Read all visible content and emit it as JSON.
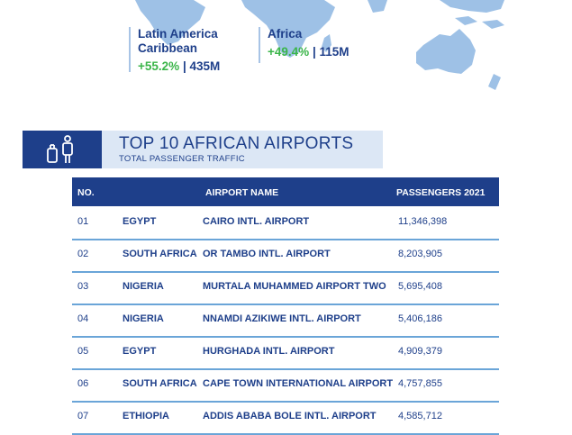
{
  "stats": [
    {
      "region": "Latin America Caribbean",
      "region_line1": "Latin America",
      "region_line2": "Caribbean",
      "change": "+55.2%",
      "sep": "|",
      "passengers": "435M"
    },
    {
      "region": "Africa",
      "region_line1": "Africa",
      "region_line2": "",
      "change": "+49.4%",
      "sep": "|",
      "passengers": "115M"
    }
  ],
  "section": {
    "title": "TOP 10 AFRICAN AIRPORTS",
    "subtitle": "TOTAL PASSENGER TRAFFIC",
    "icon": "luggage-traveler-icon"
  },
  "table": {
    "headers": {
      "no": "NO.",
      "airport": "AIRPORT NAME",
      "passengers": "PASSENGERS 2021"
    },
    "rows": [
      {
        "no": "01",
        "country": "EGYPT",
        "airport": "CAIRO INTL. AIRPORT",
        "passengers": "11,346,398"
      },
      {
        "no": "02",
        "country": "SOUTH AFRICA",
        "airport": "OR TAMBO INTL. AIRPORT",
        "passengers": "8,203,905"
      },
      {
        "no": "03",
        "country": "NIGERIA",
        "airport": "MURTALA MUHAMMED AIRPORT TWO",
        "passengers": "5,695,408"
      },
      {
        "no": "04",
        "country": "NIGERIA",
        "airport": "NNAMDI AZIKIWE INTL. AIRPORT",
        "passengers": "5,406,186"
      },
      {
        "no": "05",
        "country": "EGYPT",
        "airport": "HURGHADA INTL. AIRPORT",
        "passengers": "4,909,379"
      },
      {
        "no": "06",
        "country": "SOUTH AFRICA",
        "airport": "CAPE TOWN INTERNATIONAL AIRPORT",
        "passengers": "4,757,855"
      },
      {
        "no": "07",
        "country": "ETHIOPIA",
        "airport": "ADDIS ABABA BOLE INTL. AIRPORT",
        "passengers": "4,585,712"
      }
    ]
  },
  "colors": {
    "navy": "#1e3f8a",
    "green": "#3bb54a",
    "map": "#9ec1e6",
    "band": "#dce7f5",
    "rule": "#6aa5d8"
  }
}
